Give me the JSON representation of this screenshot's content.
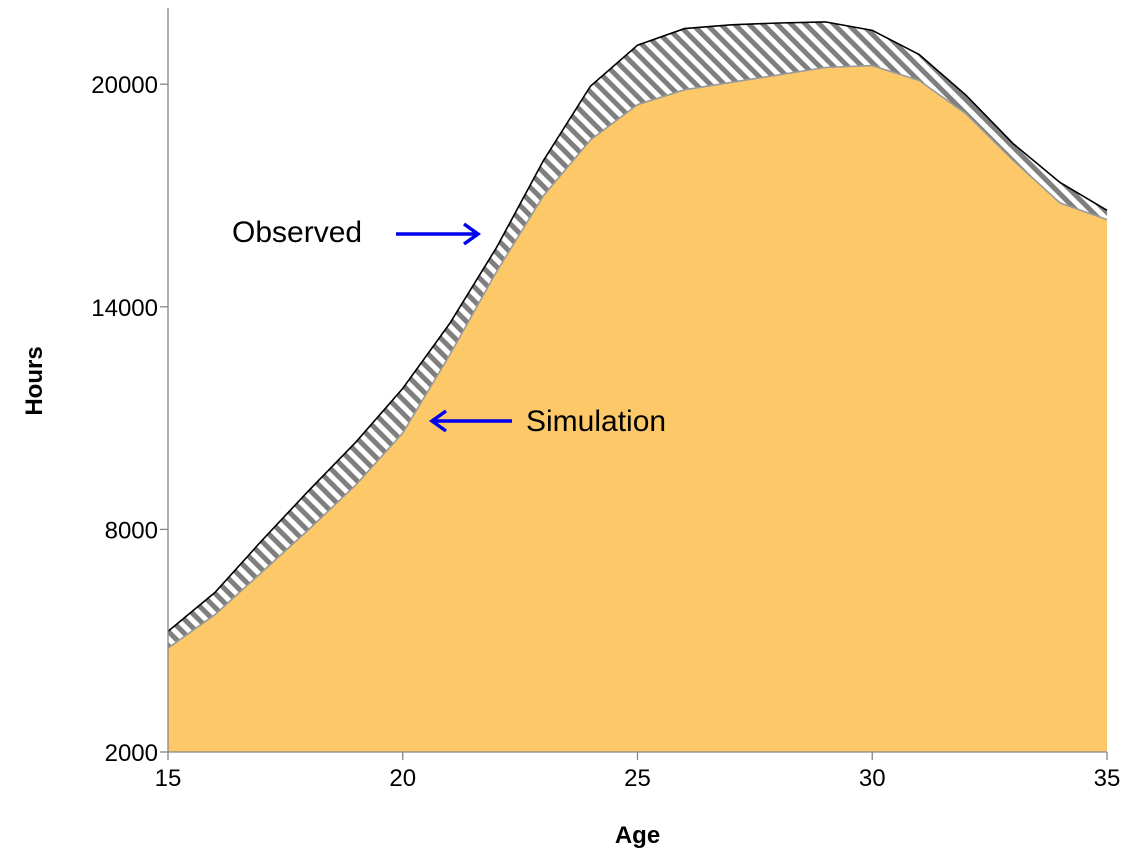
{
  "chart_data": {
    "type": "area",
    "xlabel": "Age",
    "ylabel": "Hours",
    "xlim": [
      15,
      35
    ],
    "ylim": [
      2000,
      22000
    ],
    "xticks": [
      15,
      20,
      25,
      30,
      35
    ],
    "yticks": [
      2000,
      8000,
      14000,
      20000
    ],
    "grid": false,
    "x": [
      15,
      16,
      17,
      18,
      19,
      20,
      21,
      22,
      23,
      24,
      25,
      26,
      27,
      28,
      29,
      30,
      31,
      32,
      33,
      34,
      35
    ],
    "series": [
      {
        "name": "Observed",
        "fill": "hatched",
        "values": [
          5250,
          6300,
          7700,
          9050,
          10350,
          11800,
          13550,
          15600,
          17950,
          19950,
          21050,
          21500,
          21600,
          21650,
          21680,
          21450,
          20800,
          19700,
          18400,
          17350,
          16600
        ]
      },
      {
        "name": "Simulation",
        "fill": "solid",
        "values": [
          4800,
          5700,
          6850,
          8000,
          9200,
          10600,
          12700,
          14950,
          17000,
          18500,
          19450,
          19850,
          20050,
          20250,
          20450,
          20500,
          20100,
          19200,
          17950,
          16800,
          16350
        ]
      }
    ],
    "annotations": [
      {
        "text": "Observed",
        "arrow": "right"
      },
      {
        "text": "Simulation",
        "arrow": "left"
      }
    ],
    "colors": {
      "simulation_fill": "#FDC968",
      "simulation_line": "#9a9a9a",
      "observed_hatch_dark": "#7f7f7f",
      "observed_line": "#000000",
      "arrow": "#0000EE",
      "axis": "#868686"
    }
  }
}
